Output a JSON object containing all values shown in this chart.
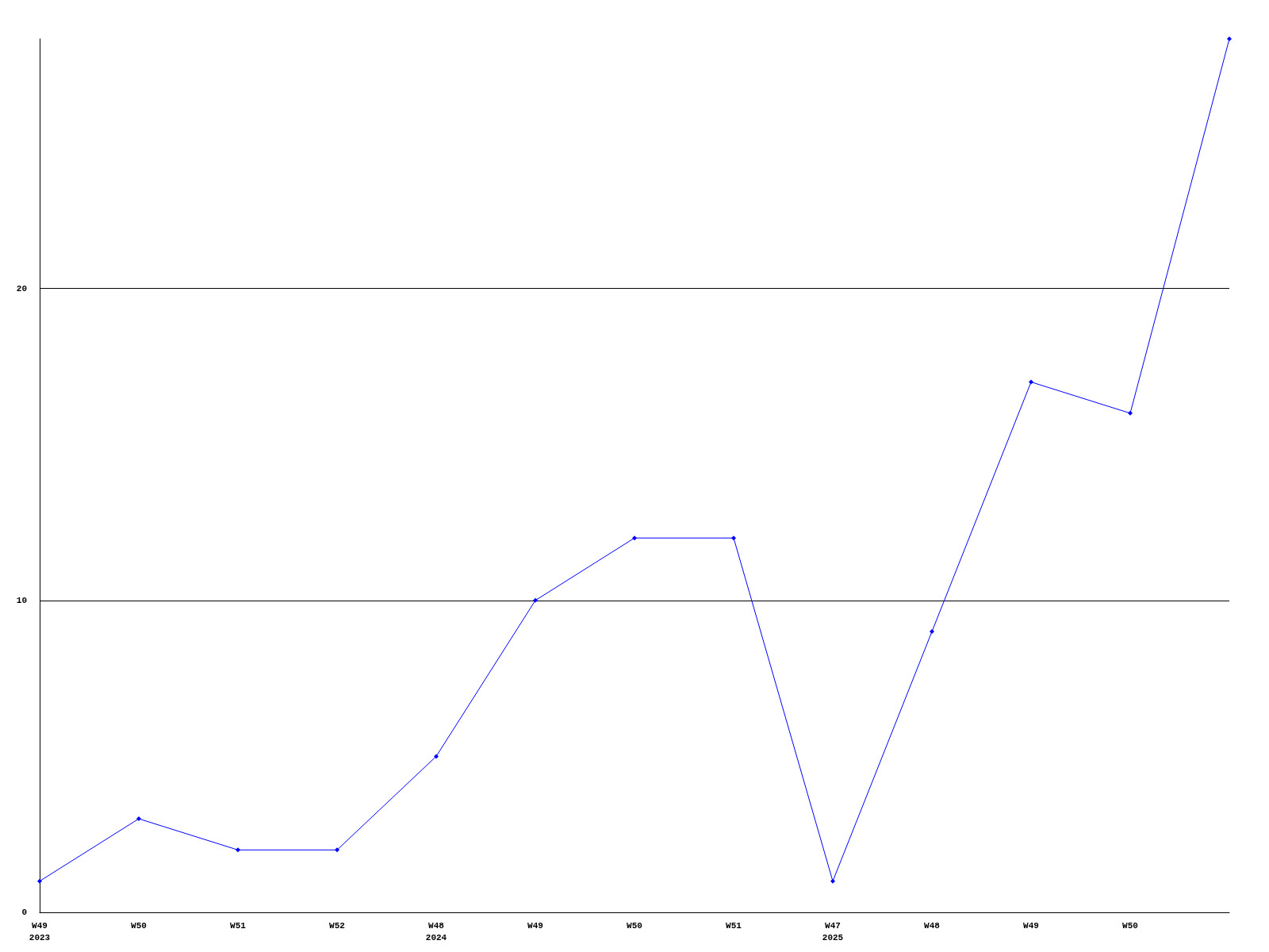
{
  "chart_data": {
    "type": "line",
    "categories": [
      "W49\n2023",
      "W50",
      "W51",
      "W52",
      "W48\n2024",
      "W49",
      "W50",
      "W51",
      "W47\n2025",
      "W48",
      "W49",
      "W50",
      null
    ],
    "series": [
      {
        "color": "#0000ff",
        "values": [
          1,
          3,
          2,
          2,
          5,
          10,
          12,
          12,
          1,
          9,
          17,
          16,
          28
        ]
      }
    ],
    "ylim": [
      0,
      28
    ],
    "yticks": [
      0,
      10,
      20
    ],
    "grid": "y",
    "marker": "diamond",
    "line_style": "solid"
  }
}
